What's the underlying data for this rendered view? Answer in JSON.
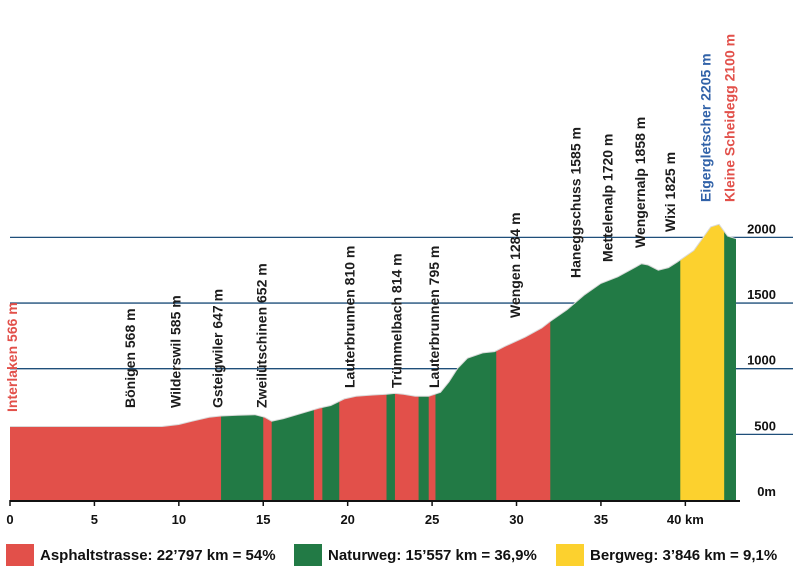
{
  "chart_data": {
    "type": "area",
    "title": "",
    "xlabel": "",
    "ylabel": "",
    "xlim": [
      0,
      43
    ],
    "ylim": [
      0,
      2300
    ],
    "x_ticks": [
      "0",
      "5",
      "10",
      "15",
      "20",
      "25",
      "30",
      "35",
      "40 km"
    ],
    "y_ticks": [
      "0m",
      "500",
      "1000",
      "1500",
      "2000"
    ],
    "colors": {
      "asphalt": "#e2504a",
      "natur": "#227a45",
      "berg": "#fcd12e",
      "blue": "#3162a8",
      "red": "#e2504a"
    },
    "profile": [
      [
        0,
        560
      ],
      [
        5,
        560
      ],
      [
        9,
        560
      ],
      [
        10,
        575
      ],
      [
        10.8,
        600
      ],
      [
        11.8,
        630
      ],
      [
        12.5,
        640
      ],
      [
        13.5,
        645
      ],
      [
        14.5,
        650
      ],
      [
        15.1,
        630
      ],
      [
        15.5,
        600
      ],
      [
        16.2,
        620
      ],
      [
        17,
        650
      ],
      [
        17.8,
        680
      ],
      [
        18.3,
        700
      ],
      [
        19,
        720
      ],
      [
        19.8,
        770
      ],
      [
        20.5,
        790
      ],
      [
        21.5,
        800
      ],
      [
        22.3,
        805
      ],
      [
        22.8,
        812
      ],
      [
        23.3,
        805
      ],
      [
        24,
        790
      ],
      [
        24.8,
        790
      ],
      [
        25.5,
        820
      ],
      [
        26,
        900
      ],
      [
        26.5,
        1000
      ],
      [
        27.1,
        1080
      ],
      [
        28,
        1120
      ],
      [
        28.7,
        1130
      ],
      [
        29.3,
        1170
      ],
      [
        30.5,
        1240
      ],
      [
        31.5,
        1310
      ],
      [
        32,
        1360
      ],
      [
        33,
        1450
      ],
      [
        34,
        1560
      ],
      [
        35,
        1650
      ],
      [
        36,
        1700
      ],
      [
        37,
        1770
      ],
      [
        37.4,
        1800
      ],
      [
        37.8,
        1790
      ],
      [
        38.4,
        1750
      ],
      [
        39,
        1770
      ],
      [
        39.5,
        1810
      ],
      [
        40.5,
        1900
      ],
      [
        41.5,
        2080
      ],
      [
        42,
        2100
      ],
      [
        42.5,
        2010
      ],
      [
        43,
        1990
      ]
    ],
    "segments": [
      {
        "kind": "asphalt",
        "from": 0,
        "to": 12.5
      },
      {
        "kind": "natur",
        "from": 12.5,
        "to": 15
      },
      {
        "kind": "asphalt",
        "from": 15,
        "to": 15.5
      },
      {
        "kind": "natur",
        "from": 15.5,
        "to": 18
      },
      {
        "kind": "asphalt",
        "from": 18,
        "to": 18.5
      },
      {
        "kind": "natur",
        "from": 18.5,
        "to": 19.5
      },
      {
        "kind": "asphalt",
        "from": 19.5,
        "to": 22.3
      },
      {
        "kind": "natur",
        "from": 22.3,
        "to": 22.8
      },
      {
        "kind": "asphalt",
        "from": 22.8,
        "to": 24.2
      },
      {
        "kind": "natur",
        "from": 24.2,
        "to": 24.8
      },
      {
        "kind": "asphalt",
        "from": 24.8,
        "to": 25.2
      },
      {
        "kind": "natur",
        "from": 25.2,
        "to": 28.8
      },
      {
        "kind": "asphalt",
        "from": 28.8,
        "to": 32
      },
      {
        "kind": "natur",
        "from": 32,
        "to": 39.7
      },
      {
        "kind": "berg",
        "from": 39.7,
        "to": 42.3
      },
      {
        "kind": "natur",
        "from": 42.3,
        "to": 43
      }
    ],
    "annotations": [
      {
        "text": "Interlaken  566 m",
        "x": 0.4,
        "color": "red"
      },
      {
        "text": "Bönigen  568 m",
        "x": 7.4,
        "color": "dark"
      },
      {
        "text": "Wilderswil  585 m",
        "x": 10.1,
        "color": "dark"
      },
      {
        "text": "Gsteigwiler  647 m",
        "x": 12.6,
        "color": "dark"
      },
      {
        "text": "Zweilütschinen  652 m",
        "x": 15.2,
        "color": "dark"
      },
      {
        "text": "Lauterbrunnen  810 m",
        "x": 20.4,
        "color": "dark"
      },
      {
        "text": "Trümmelbach  814 m",
        "x": 23.2,
        "color": "dark"
      },
      {
        "text": "Lauterbrunnen  795 m",
        "x": 25.4,
        "color": "dark"
      },
      {
        "text": "Wengen  1284 m",
        "x": 30.2,
        "color": "dark"
      },
      {
        "text": "Haneggschuss  1585 m",
        "x": 33.8,
        "color": "dark"
      },
      {
        "text": "Mettelenalp  1720 m",
        "x": 35.7,
        "color": "dark"
      },
      {
        "text": "Wengernalp  1858 m",
        "x": 37.6,
        "color": "dark"
      },
      {
        "text": "Wixi  1825 m",
        "x": 39.4,
        "color": "dark"
      },
      {
        "text": "Eigergletscher  2205 m",
        "x": 41.5,
        "color": "blue"
      },
      {
        "text": "Kleine Scheidegg  2100 m",
        "x": 42.9,
        "color": "red"
      }
    ],
    "legend": [
      {
        "text": "Asphaltstrasse: 22’797 km = 54%",
        "color": "#e2504a"
      },
      {
        "text": "Naturweg: 15’557 km = 36,9%",
        "color": "#227a45"
      },
      {
        "text": "Bergweg: 3’846 km = 9,1%",
        "color": "#fcd12e"
      }
    ]
  }
}
